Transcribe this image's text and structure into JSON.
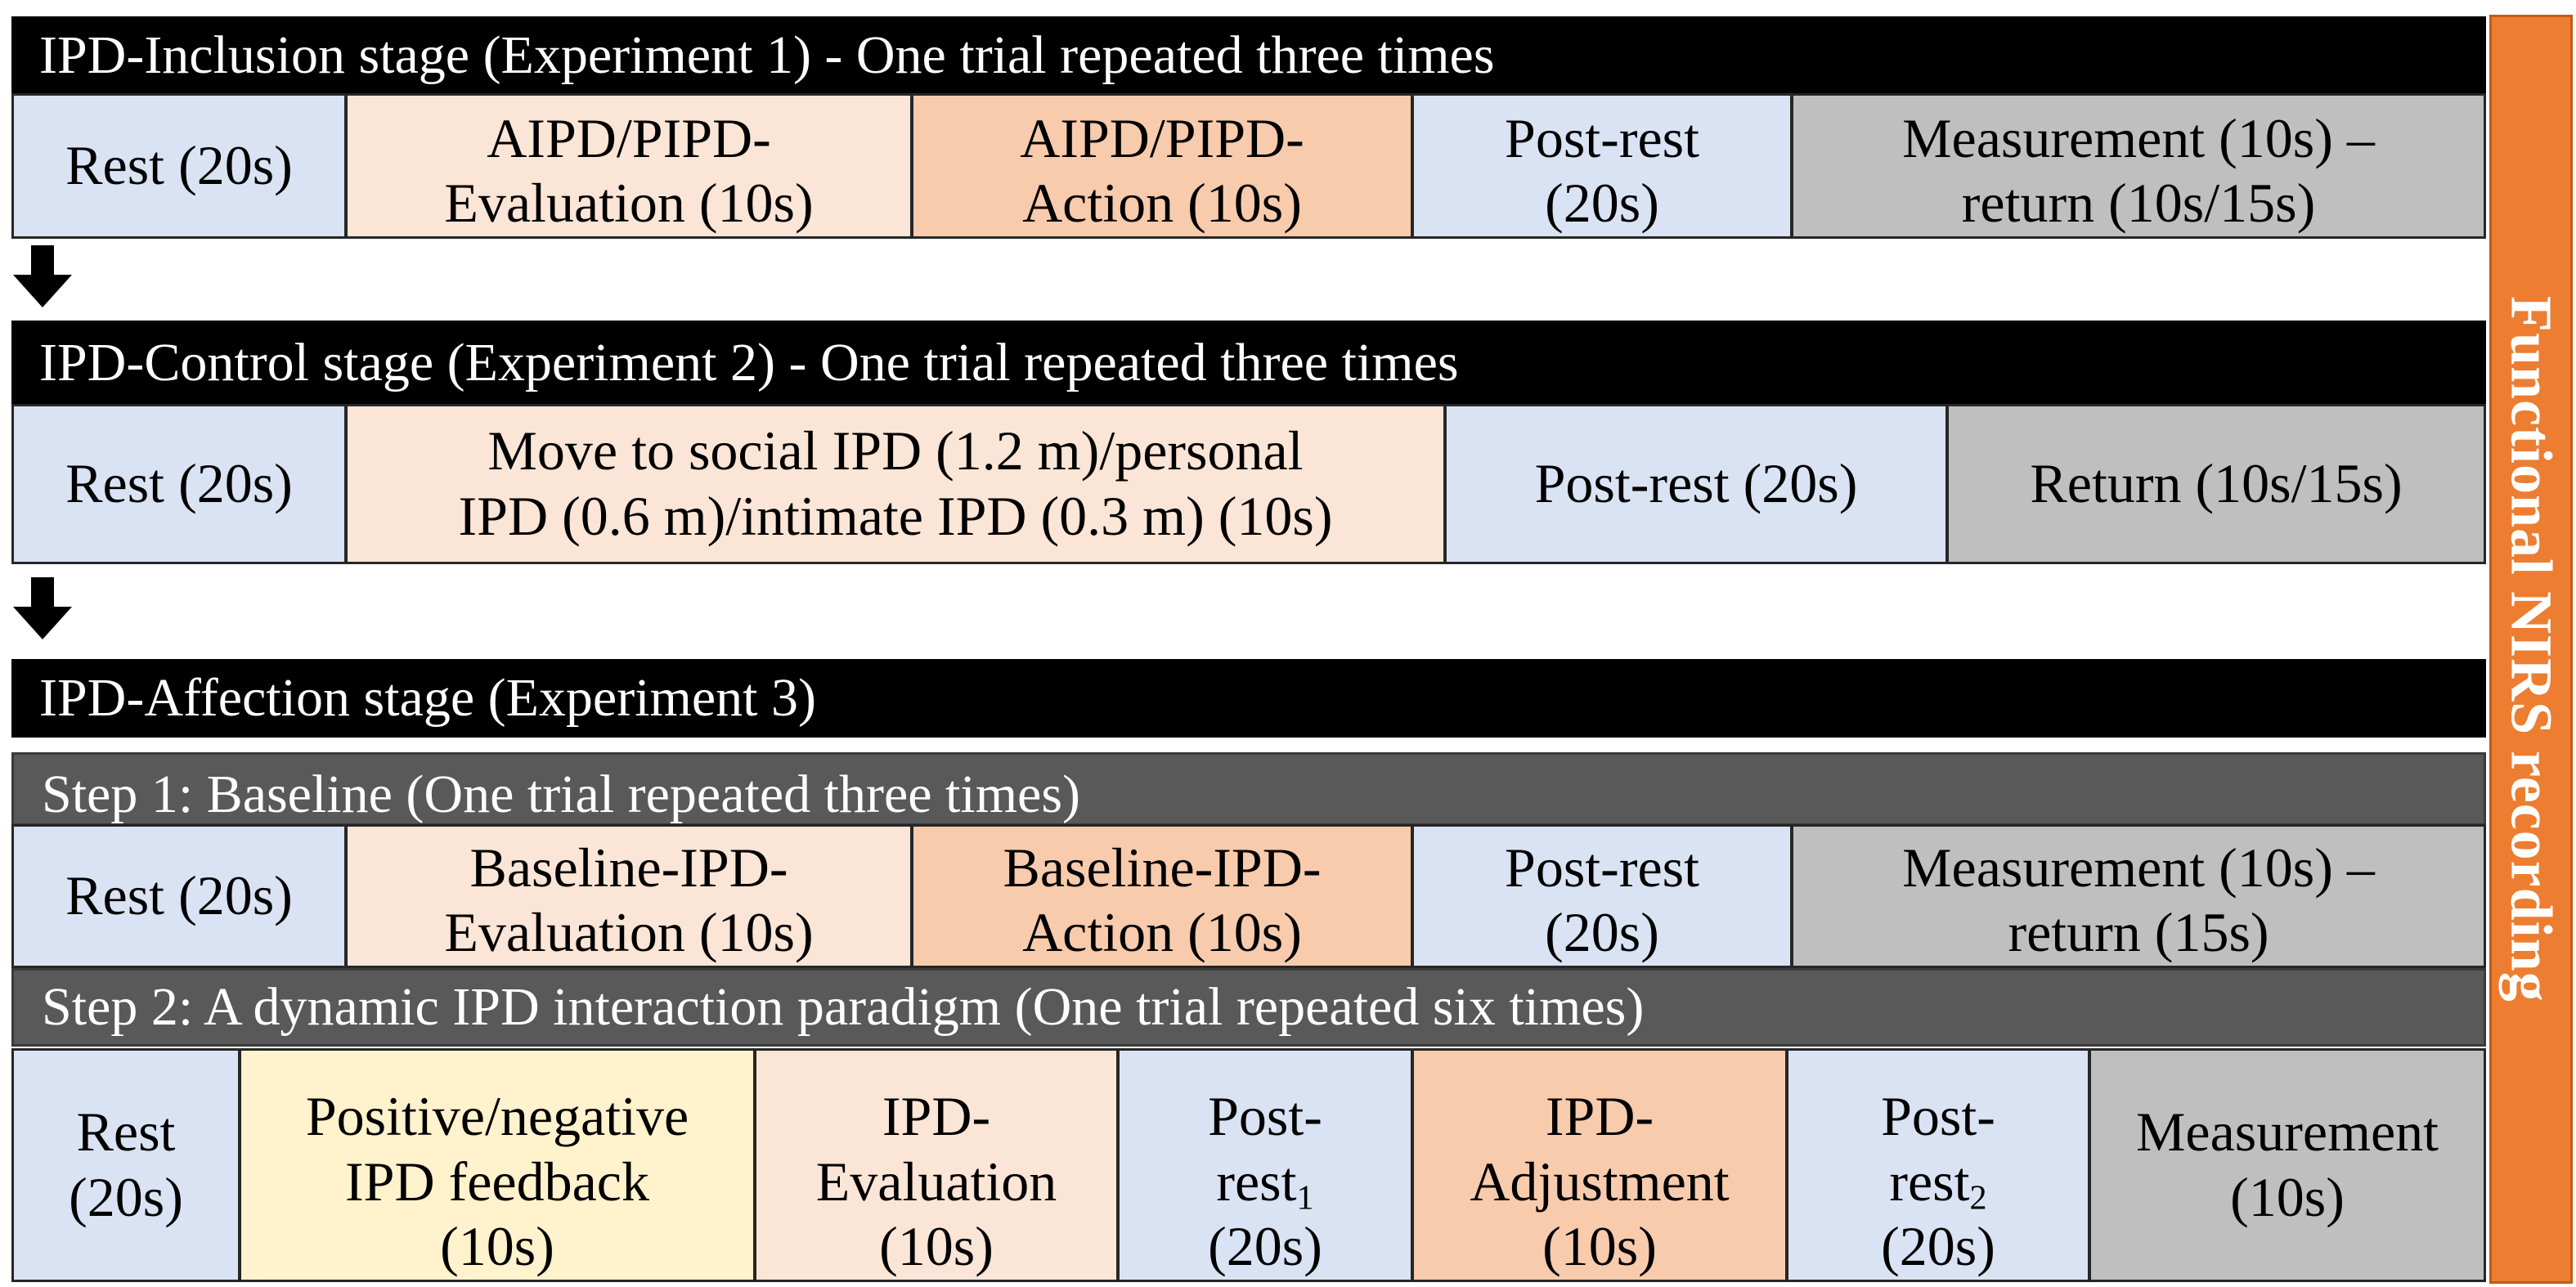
{
  "stage1": {
    "header": "IPD-Inclusion stage (Experiment 1) - One trial repeated three times",
    "cells": [
      {
        "lines": [
          "Rest (20s)"
        ]
      },
      {
        "lines": [
          "AIPD/PIPD-",
          "Evaluation (10s)"
        ]
      },
      {
        "lines": [
          "AIPD/PIPD-",
          "Action (10s)"
        ]
      },
      {
        "lines": [
          "Post-rest",
          "(20s)"
        ]
      },
      {
        "lines": [
          "Measurement (10s) –",
          "return (10s/15s)"
        ]
      }
    ]
  },
  "stage2": {
    "header": "IPD-Control stage (Experiment 2) - One trial repeated three times",
    "cells": [
      {
        "lines": [
          "Rest (20s)"
        ]
      },
      {
        "lines": [
          "Move to social IPD (1.2 m)/personal",
          "IPD (0.6 m)/intimate IPD (0.3 m) (10s)"
        ]
      },
      {
        "lines": [
          "Post-rest (20s)"
        ]
      },
      {
        "lines": [
          "Return (10s/15s)"
        ]
      }
    ]
  },
  "stage3": {
    "header": "IPD-Affection stage (Experiment 3)",
    "step1": {
      "label": "Step 1: Baseline (One trial repeated three times)",
      "cells": [
        {
          "lines": [
            "Rest (20s)"
          ]
        },
        {
          "lines": [
            "Baseline-IPD-",
            "Evaluation (10s)"
          ]
        },
        {
          "lines": [
            "Baseline-IPD-",
            "Action (10s)"
          ]
        },
        {
          "lines": [
            "Post-rest",
            "(20s)"
          ]
        },
        {
          "lines": [
            "Measurement (10s) –",
            "return (15s)"
          ]
        }
      ]
    },
    "step2": {
      "label": "Step 2: A dynamic IPD interaction paradigm (One trial repeated six times)",
      "cells": [
        {
          "lines": [
            "Rest",
            "(20s)"
          ]
        },
        {
          "lines": [
            "Positive/negative",
            "IPD feedback",
            "(10s)"
          ]
        },
        {
          "lines": [
            "IPD-",
            "Evaluation",
            "(10s)"
          ]
        },
        {
          "lines": [
            "Post-",
            "rest",
            "(20s)"
          ],
          "sub": "1"
        },
        {
          "lines": [
            "IPD-",
            "Adjustment",
            "(10s)"
          ]
        },
        {
          "lines": [
            "Post-",
            "rest",
            "(20s)"
          ],
          "sub": "2"
        },
        {
          "lines": [
            "Measurement",
            "(10s)"
          ]
        }
      ]
    }
  },
  "sidebar": {
    "label": "Functional NIRS recording"
  },
  "colors": {
    "header": "#000000",
    "step": "#595959",
    "rest": "#dae3f3",
    "evaluation": "#fbe5d6",
    "action": "#f8cbad",
    "measurement": "#bfbfbf",
    "feedback": "#fff2cc",
    "sidebar": "#ed7d31"
  },
  "icons": {
    "flow_arrow": "arrow-down-icon"
  }
}
